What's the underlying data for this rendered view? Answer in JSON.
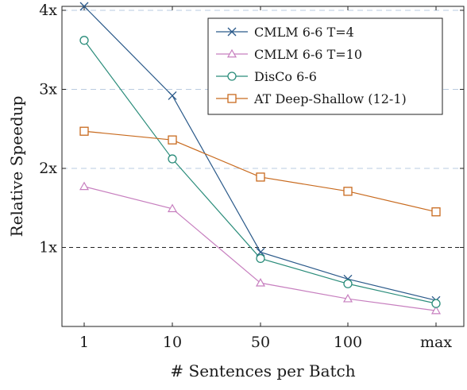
{
  "chart_data": {
    "type": "line",
    "xlabel": "# Sentences per Batch",
    "ylabel": "Relative Speedup",
    "categories": [
      "1",
      "10",
      "50",
      "100",
      "max"
    ],
    "yticks": [
      {
        "value": 1,
        "label": "1x"
      },
      {
        "value": 2,
        "label": "2x"
      },
      {
        "value": 3,
        "label": "3x"
      },
      {
        "value": 4,
        "label": "4x"
      }
    ],
    "ylim": [
      0.0,
      4.05
    ],
    "reference_line": {
      "value": 1,
      "style": "dashed"
    },
    "grid": "horizontal dashed at y ticks",
    "legend_position": "top-right",
    "series": [
      {
        "name": "CMLM 6-6 T=4",
        "color": "#2b5a8a",
        "marker": "x",
        "values": [
          4.05,
          2.92,
          0.94,
          0.6,
          0.33
        ]
      },
      {
        "name": "CMLM 6-6 T=10",
        "color": "#c77fbf",
        "marker": "triangle",
        "values": [
          1.77,
          1.49,
          0.55,
          0.35,
          0.2
        ]
      },
      {
        "name": "DisCo 6-6",
        "color": "#2a8c7a",
        "marker": "circle",
        "values": [
          3.62,
          2.12,
          0.86,
          0.54,
          0.29
        ]
      },
      {
        "name": "AT Deep-Shallow (12-1)",
        "color": "#c86a1e",
        "marker": "square",
        "values": [
          2.47,
          2.36,
          1.89,
          1.71,
          1.45
        ]
      }
    ]
  }
}
